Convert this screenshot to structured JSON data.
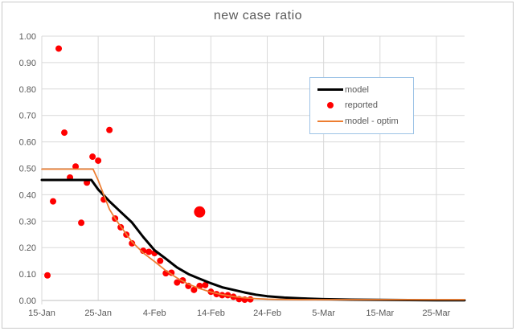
{
  "chart": {
    "title": "new case ratio",
    "legend": {
      "items": [
        {
          "label": "model",
          "swatch": "line",
          "color": "#000000"
        },
        {
          "label": "reported",
          "swatch": "dot",
          "color": "#FF0000"
        },
        {
          "label": "model - optim",
          "swatch": "line-thin",
          "color": "#ED7D31"
        }
      ],
      "border_color": "#9DC3E6",
      "position": "inside-upper-right"
    },
    "colors": {
      "grid": "#D9D9D9",
      "axis": "#BFBFBF",
      "tick_text": "#595959",
      "title_text": "#595959"
    }
  },
  "chart_data": {
    "type": "line",
    "title": "new case ratio",
    "grid": true,
    "x_axis": {
      "unit": "days since 15-Jan",
      "range_days": [
        0,
        75
      ],
      "tick_days": [
        0,
        10,
        20,
        30,
        40,
        50,
        60,
        70
      ],
      "tick_labels": [
        "15-Jan",
        "25-Jan",
        "4-Feb",
        "14-Feb",
        "24-Feb",
        "5-Mar",
        "15-Mar",
        "25-Mar"
      ]
    },
    "y_axis": {
      "range": [
        0,
        1
      ],
      "ticks": [
        0,
        0.1,
        0.2,
        0.3,
        0.4,
        0.5,
        0.6,
        0.7,
        0.8,
        0.9,
        1.0
      ],
      "tick_labels": [
        "0.00",
        "0.10",
        "0.20",
        "0.30",
        "0.40",
        "0.50",
        "0.60",
        "0.70",
        "0.80",
        "0.90",
        "1.00"
      ]
    },
    "series": [
      {
        "name": "model",
        "type": "line",
        "color": "#000000",
        "width": 3,
        "points": [
          [
            0,
            0.456
          ],
          [
            8.8,
            0.456
          ],
          [
            10,
            0.42
          ],
          [
            11,
            0.398
          ],
          [
            12,
            0.375
          ],
          [
            14,
            0.335
          ],
          [
            16,
            0.295
          ],
          [
            18,
            0.24
          ],
          [
            20,
            0.19
          ],
          [
            22,
            0.158
          ],
          [
            24,
            0.125
          ],
          [
            26,
            0.1
          ],
          [
            28,
            0.082
          ],
          [
            30,
            0.065
          ],
          [
            32,
            0.05
          ],
          [
            34,
            0.04
          ],
          [
            36,
            0.03
          ],
          [
            38,
            0.022
          ],
          [
            40,
            0.016
          ],
          [
            43,
            0.011
          ],
          [
            46,
            0.008
          ],
          [
            50,
            0.005
          ],
          [
            55,
            0.003
          ],
          [
            60,
            0.002
          ],
          [
            65,
            0.0015
          ],
          [
            70,
            0.001
          ],
          [
            75,
            0.001
          ]
        ]
      },
      {
        "name": "reported",
        "type": "scatter",
        "color": "#FF0000",
        "marker_radius": 4,
        "points": [
          [
            1,
            0.095
          ],
          [
            2,
            0.375
          ],
          [
            3,
            0.953
          ],
          [
            4,
            0.635
          ],
          [
            5,
            0.465
          ],
          [
            6,
            0.507
          ],
          [
            7,
            0.294
          ],
          [
            8,
            0.446
          ],
          [
            9,
            0.544
          ],
          [
            10,
            0.529
          ],
          [
            11,
            0.382
          ],
          [
            12,
            0.645
          ],
          [
            13,
            0.31
          ],
          [
            14,
            0.277
          ],
          [
            15,
            0.249
          ],
          [
            16,
            0.216
          ],
          [
            18,
            0.188
          ],
          [
            19,
            0.184
          ],
          [
            20,
            0.179
          ],
          [
            21,
            0.15
          ],
          [
            22,
            0.103
          ],
          [
            23,
            0.105
          ],
          [
            24,
            0.068
          ],
          [
            25,
            0.076
          ],
          [
            26,
            0.055
          ],
          [
            27,
            0.04
          ],
          [
            28,
            0.055
          ],
          [
            29,
            0.058
          ],
          [
            30,
            0.033
          ],
          [
            31,
            0.024
          ],
          [
            32,
            0.02
          ],
          [
            33,
            0.02
          ],
          [
            34,
            0.014
          ],
          [
            35,
            0.005
          ],
          [
            36,
            0.003
          ],
          [
            37,
            0.004
          ]
        ],
        "outlier_point": {
          "day": 28,
          "value": 0.335,
          "marker_radius": 7
        }
      },
      {
        "name": "model - optim",
        "type": "line",
        "color": "#ED7D31",
        "width": 1.75,
        "points": [
          [
            0,
            0.497
          ],
          [
            9.1,
            0.497
          ],
          [
            10,
            0.455
          ],
          [
            11,
            0.4
          ],
          [
            12,
            0.345
          ],
          [
            13,
            0.31
          ],
          [
            14,
            0.28
          ],
          [
            16,
            0.222
          ],
          [
            18,
            0.18
          ],
          [
            20,
            0.147
          ],
          [
            22,
            0.113
          ],
          [
            24,
            0.085
          ],
          [
            26,
            0.062
          ],
          [
            28,
            0.045
          ],
          [
            30,
            0.032
          ],
          [
            32,
            0.022
          ],
          [
            34,
            0.015
          ],
          [
            36,
            0.01
          ],
          [
            38,
            0.007
          ],
          [
            40,
            0.005
          ],
          [
            43,
            0.004
          ],
          [
            46,
            0.003
          ],
          [
            50,
            0.003
          ],
          [
            60,
            0.003
          ],
          [
            75,
            0.003
          ]
        ]
      }
    ]
  }
}
